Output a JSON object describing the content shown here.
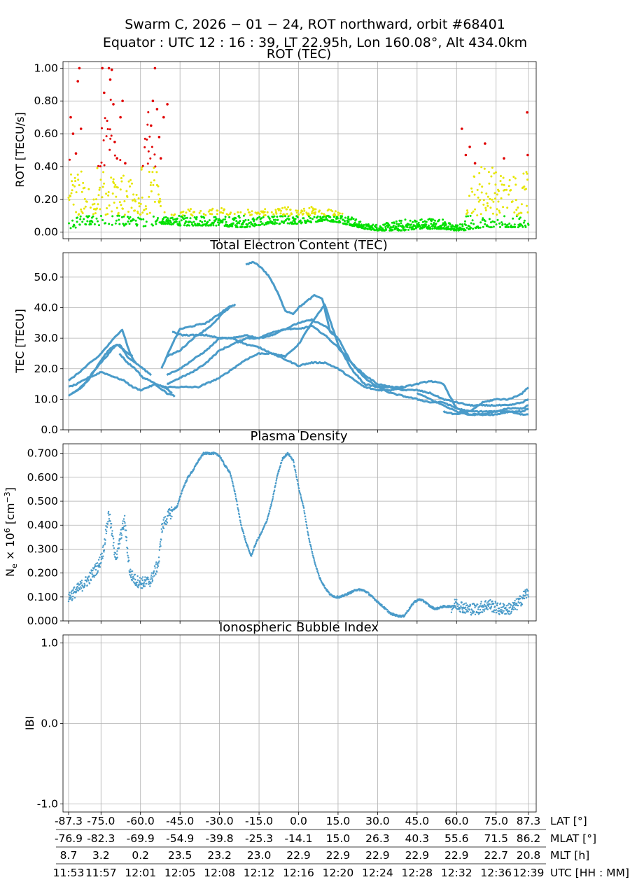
{
  "title": {
    "line1": "Swarm C,  2026 − 01 − 24,  ROT northward,  orbit #68401",
    "line2": "Equator :  UTC 12 : 16 : 39,  LT 22.95h,  Lon 160.08°,  Alt 434.0km"
  },
  "colors": {
    "low": "#00e000",
    "mid": "#e6e600",
    "high": "#e00000",
    "line": "#4a9bc9"
  },
  "chart_data": [
    {
      "type": "scatter",
      "title": "ROT (TEC)",
      "ylabel": "ROT [TECU/s]",
      "ylim": [
        -0.04,
        1.04
      ],
      "yticks": [
        0.0,
        0.2,
        0.4,
        0.6,
        0.8,
        1.0
      ],
      "yticklabels": [
        "0.00",
        "0.20",
        "0.40",
        "0.60",
        "0.80",
        "1.00"
      ],
      "color_thresholds": {
        "green_below": 0.1,
        "yellow_below": 0.4,
        "red_at_or_above": 0.4
      },
      "envelope": {
        "x": [
          -87.3,
          -82,
          -78,
          -75,
          -72,
          -70,
          -66,
          -63,
          -60,
          -57,
          -54,
          -52,
          -50,
          -45,
          -40,
          -35,
          -30,
          -25,
          -20,
          -15,
          -10,
          -5,
          0,
          5,
          10,
          15,
          20,
          25,
          30,
          35,
          40,
          45,
          50,
          55,
          58,
          60,
          63,
          66,
          70,
          75,
          80,
          85,
          87.3
        ],
        "low": [
          0.0,
          0.04,
          0.05,
          0.04,
          0.05,
          0.04,
          0.04,
          0.05,
          0.03,
          0.04,
          0.04,
          0.05,
          0.05,
          0.04,
          0.04,
          0.04,
          0.04,
          0.03,
          0.03,
          0.04,
          0.05,
          0.05,
          0.05,
          0.06,
          0.07,
          0.06,
          0.04,
          0.02,
          0.01,
          0.01,
          0.01,
          0.02,
          0.02,
          0.02,
          0.01,
          0.01,
          0.01,
          0.02,
          0.03,
          0.03,
          0.03,
          0.03,
          0.03
        ],
        "high": [
          0.45,
          0.38,
          0.22,
          0.6,
          0.95,
          0.55,
          0.4,
          0.3,
          0.38,
          0.75,
          0.45,
          0.18,
          0.1,
          0.12,
          0.15,
          0.14,
          0.16,
          0.12,
          0.14,
          0.15,
          0.13,
          0.16,
          0.14,
          0.16,
          0.15,
          0.14,
          0.1,
          0.05,
          0.05,
          0.06,
          0.08,
          0.08,
          0.09,
          0.08,
          0.05,
          0.05,
          0.05,
          0.35,
          0.45,
          0.4,
          0.38,
          0.35,
          0.45
        ]
      },
      "outliers": {
        "x": [
          -86.5,
          -85.6,
          -84.5,
          -83.8,
          -83.2,
          -82.6,
          -74.5,
          -73.8,
          -72.0,
          -71.5,
          -70.9,
          -70.3,
          -69.8,
          -68.9,
          -67.6,
          -66.8,
          -65.8,
          -56.0,
          -55.3,
          -54.5,
          -53.7,
          -52.9,
          -52.3,
          -51.2,
          -49.8,
          62.0,
          63.5,
          65.0,
          67.0,
          70.8,
          78.0,
          86.8,
          87.0
        ],
        "y": [
          0.7,
          0.6,
          0.48,
          0.92,
          1.0,
          0.63,
          1.0,
          0.85,
          1.0,
          0.93,
          0.99,
          0.78,
          0.55,
          0.45,
          0.7,
          0.8,
          0.42,
          0.65,
          0.8,
          1.0,
          0.75,
          0.58,
          0.45,
          0.7,
          0.78,
          0.63,
          0.47,
          0.52,
          0.42,
          0.54,
          0.45,
          0.73,
          0.47
        ]
      }
    },
    {
      "type": "line",
      "title": "Total Electron Content (TEC)",
      "ylabel": "TEC [TECU]",
      "ylim": [
        0,
        58
      ],
      "yticks": [
        0,
        10,
        20,
        30,
        40,
        50
      ],
      "yticklabels": [
        "0.0",
        "10.0",
        "20.0",
        "30.0",
        "40.0",
        "50.0"
      ],
      "series": [
        {
          "name": "track-1",
          "x": [
            -87.3,
            -84,
            -80,
            -77,
            -75,
            -72,
            -69,
            -66,
            -63,
            -60,
            -57,
            -54,
            -51,
            -48
          ],
          "y": [
            14,
            15,
            17,
            18,
            19,
            18,
            17,
            16,
            14,
            13,
            14,
            15,
            14,
            12
          ]
        },
        {
          "name": "track-2",
          "x": [
            -87.3,
            -84,
            -80,
            -77,
            -74,
            -71,
            -68,
            -65,
            -62
          ],
          "y": [
            11,
            13,
            16,
            20,
            24,
            27,
            28,
            24,
            22
          ]
        },
        {
          "name": "track-3",
          "x": [
            -87.3,
            -83,
            -79,
            -76,
            -73,
            -70,
            -67,
            -64,
            -62,
            -59,
            -56
          ],
          "y": [
            16,
            19,
            22,
            24,
            27,
            30,
            33,
            25,
            22,
            20,
            18
          ]
        },
        {
          "name": "track-4",
          "x": [
            -86,
            -82,
            -78,
            -75,
            -72,
            -69,
            -66,
            -63
          ],
          "y": [
            12,
            14,
            19,
            22,
            25,
            28,
            26,
            24
          ]
        },
        {
          "name": "track-5",
          "x": [
            -68,
            -65,
            -62,
            -59,
            -56,
            -53,
            -50,
            -47
          ],
          "y": [
            25,
            22,
            20,
            17,
            16,
            14,
            12,
            11
          ]
        },
        {
          "name": "track-6",
          "x": [
            -52,
            -48,
            -45,
            -40,
            -35,
            -30,
            -27,
            -24
          ],
          "y": [
            20,
            28,
            33,
            34,
            35,
            38,
            40,
            41
          ]
        },
        {
          "name": "track-7",
          "x": [
            -50,
            -45,
            -40,
            -35,
            -32,
            -29,
            -26
          ],
          "y": [
            24,
            26,
            30,
            33,
            35,
            38,
            40
          ]
        },
        {
          "name": "track-8",
          "x": [
            -50,
            -45,
            -40,
            -35,
            -30,
            -25,
            -20,
            -15,
            -10,
            -5,
            0,
            5,
            10,
            15
          ],
          "y": [
            15,
            17,
            19,
            22,
            26,
            28,
            30,
            30,
            32,
            33,
            35,
            36,
            34,
            30
          ]
        },
        {
          "name": "track-9",
          "x": [
            -52,
            -45,
            -38,
            -30,
            -25,
            -20,
            -15,
            -10,
            -5,
            0,
            5,
            10,
            15,
            20,
            25,
            30,
            35,
            40
          ],
          "y": [
            14,
            14,
            14,
            17,
            20,
            23,
            25,
            25,
            23,
            21,
            22,
            22,
            20,
            17,
            14,
            13,
            13,
            14
          ]
        },
        {
          "name": "track-10",
          "x": [
            -50,
            -45,
            -40,
            -35,
            -30,
            -25,
            -20,
            -15,
            -10,
            -5,
            0,
            5,
            10,
            15,
            20,
            25,
            30,
            35,
            40
          ],
          "y": [
            18,
            20,
            23,
            26,
            30,
            30,
            31,
            30,
            31,
            33,
            33,
            34,
            31,
            27,
            22,
            18,
            15,
            14,
            13
          ]
        },
        {
          "name": "track-11",
          "x": [
            -48,
            -44,
            -40,
            -35,
            -30,
            -25,
            -20,
            -15,
            -10,
            -5,
            0,
            5,
            10,
            15,
            20,
            25,
            30,
            35,
            40,
            45,
            50,
            55,
            60,
            65,
            70,
            75,
            80,
            85,
            87.3
          ],
          "y": [
            32,
            31,
            31,
            31,
            30,
            30,
            28,
            27,
            25,
            24,
            28,
            35,
            41,
            28,
            20,
            15,
            14,
            14,
            13,
            13,
            12,
            10,
            9,
            8,
            8,
            8,
            8,
            9,
            10
          ]
        },
        {
          "name": "track-12",
          "x": [
            -20,
            -17,
            -14,
            -11,
            -8,
            -5,
            -2,
            0,
            3,
            6,
            9,
            12,
            15,
            20,
            25,
            30,
            35,
            40,
            45,
            50,
            55,
            60,
            65,
            70,
            75,
            80,
            85,
            87.3
          ],
          "y": [
            54,
            55,
            53,
            50,
            45,
            39,
            38,
            40,
            42,
            44,
            43,
            32,
            30,
            22,
            17,
            14,
            12,
            11,
            10,
            9,
            9,
            7,
            6,
            6,
            6,
            6,
            5,
            5
          ]
        },
        {
          "name": "track-13",
          "x": [
            30,
            35,
            40,
            45,
            50,
            55,
            60,
            65,
            70,
            75,
            80,
            85,
            87.3
          ],
          "y": [
            14,
            14,
            14,
            15,
            16,
            15,
            7,
            5,
            5,
            6,
            7,
            7,
            8
          ]
        },
        {
          "name": "track-14",
          "x": [
            45,
            50,
            55,
            60,
            65,
            70,
            75,
            80,
            85,
            87.3
          ],
          "y": [
            12,
            10,
            8,
            6,
            5,
            5,
            5,
            6,
            6,
            7
          ]
        },
        {
          "name": "track-15",
          "x": [
            55,
            60,
            65,
            70,
            75,
            80,
            85,
            87.3
          ],
          "y": [
            6,
            5,
            6,
            9,
            10,
            10,
            12,
            14
          ]
        }
      ]
    },
    {
      "type": "scatter",
      "title": "Plasma Density",
      "ylabel": "Nₑ × 10⁶ [cm⁻³]",
      "ylabel_parts": {
        "a": "N",
        "b": "e",
        "c": " × 10",
        "d": "6",
        "e": " [cm",
        "f": "−3",
        "g": "]"
      },
      "ylim": [
        0,
        0.74
      ],
      "yticks": [
        0,
        0.1,
        0.2,
        0.3,
        0.4,
        0.5,
        0.6,
        0.7
      ],
      "yticklabels": [
        "0.000",
        "0.100",
        "0.200",
        "0.300",
        "0.400",
        "0.500",
        "0.600",
        "0.700"
      ],
      "series": [
        {
          "name": "Ne",
          "x": [
            -87.3,
            -86,
            -84,
            -82,
            -80,
            -78,
            -76,
            -75,
            -74,
            -73,
            -72,
            -71,
            -70,
            -69,
            -68,
            -67,
            -66,
            -65,
            -64,
            -62,
            -60,
            -58,
            -56,
            -55,
            -54,
            -53,
            -52,
            -51,
            -50,
            -48,
            -46,
            -44,
            -42,
            -40,
            -38,
            -36,
            -34,
            -32,
            -30,
            -28,
            -26,
            -24,
            -22,
            -20,
            -18,
            -16,
            -14,
            -12,
            -10,
            -8,
            -6,
            -4,
            -2,
            0,
            2,
            4,
            6,
            8,
            10,
            12,
            14,
            16,
            18,
            20,
            22,
            24,
            26,
            28,
            30,
            32,
            35,
            38,
            40,
            42,
            44,
            46,
            48,
            50,
            52,
            55,
            58,
            60,
            62,
            64,
            66,
            68,
            70,
            72,
            74,
            76,
            78,
            80,
            82,
            84,
            86,
            87.3
          ],
          "y": [
            0.1,
            0.11,
            0.13,
            0.15,
            0.17,
            0.2,
            0.23,
            0.26,
            0.3,
            0.38,
            0.45,
            0.38,
            0.3,
            0.26,
            0.33,
            0.38,
            0.42,
            0.3,
            0.2,
            0.17,
            0.16,
            0.16,
            0.17,
            0.2,
            0.22,
            0.25,
            0.38,
            0.41,
            0.43,
            0.46,
            0.48,
            0.55,
            0.6,
            0.63,
            0.67,
            0.7,
            0.7,
            0.7,
            0.69,
            0.65,
            0.62,
            0.53,
            0.41,
            0.33,
            0.27,
            0.33,
            0.37,
            0.42,
            0.5,
            0.61,
            0.68,
            0.7,
            0.67,
            0.56,
            0.47,
            0.34,
            0.25,
            0.18,
            0.14,
            0.11,
            0.1,
            0.1,
            0.11,
            0.12,
            0.13,
            0.13,
            0.12,
            0.1,
            0.08,
            0.06,
            0.03,
            0.02,
            0.02,
            0.05,
            0.08,
            0.09,
            0.08,
            0.06,
            0.05,
            0.06,
            0.06,
            0.07,
            0.06,
            0.05,
            0.05,
            0.05,
            0.06,
            0.07,
            0.06,
            0.05,
            0.05,
            0.05,
            0.06,
            0.08,
            0.11,
            0.12
          ]
        }
      ]
    },
    {
      "type": "scatter",
      "title": "Ionospheric Bubble Index",
      "ylabel": "IBI",
      "ylim": [
        -1.1,
        1.1
      ],
      "yticks": [
        -1,
        0,
        1
      ],
      "yticklabels": [
        "-1.0",
        "0.0",
        "1.0"
      ],
      "series": []
    }
  ],
  "xaxis": {
    "lat_range": [
      -87.3,
      87.3
    ],
    "rows": [
      {
        "label": "LAT [°]",
        "values": [
          "-87.3",
          "-75.0",
          "-60.0",
          "-45.0",
          "-30.0",
          "-15.0",
          "0.0",
          "15.0",
          "30.0",
          "45.0",
          "60.0",
          "75.0",
          "87.3"
        ]
      },
      {
        "label": "MLAT [°]",
        "values": [
          "-76.9",
          "-82.3",
          "-69.9",
          "-54.9",
          "-39.8",
          "-25.3",
          "-14.1",
          "15.0",
          "26.3",
          "40.3",
          "55.6",
          "71.5",
          "86.2"
        ]
      },
      {
        "label": "MLT [h]",
        "values": [
          "8.7",
          "3.2",
          "0.2",
          "23.5",
          "23.2",
          "23.0",
          "22.9",
          "22.9",
          "22.9",
          "22.9",
          "22.9",
          "22.7",
          "20.8"
        ]
      },
      {
        "label": "UTC [HH : MM]",
        "values": [
          "11:53",
          "11:57",
          "12:01",
          "12:05",
          "12:08",
          "12:12",
          "12:16",
          "12:20",
          "12:24",
          "12:28",
          "12:32",
          "12:36",
          "12:39"
        ]
      }
    ],
    "tick_lat": [
      -87.3,
      -75,
      -60,
      -45,
      -30,
      -15,
      0,
      15,
      30,
      45,
      60,
      75,
      87.3
    ]
  }
}
